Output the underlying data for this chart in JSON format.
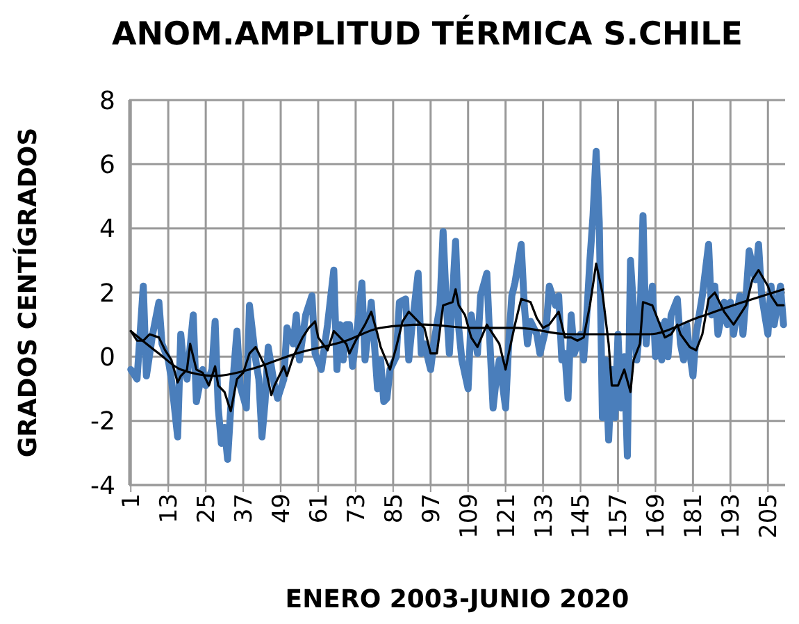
{
  "chart_data": {
    "type": "line",
    "title": "ANOM.AMPLITUD TÉRMICA S.CHILE",
    "xlabel": "ENERO 2003-JUNIO 2020",
    "ylabel": "GRADOS CENTÍGRADOS",
    "xlim": [
      0.5,
      210.5
    ],
    "xticks": [
      1,
      13,
      25,
      37,
      49,
      61,
      73,
      85,
      97,
      109,
      121,
      133,
      145,
      157,
      169,
      181,
      193,
      205
    ],
    "ylim": [
      -4,
      8
    ],
    "yticks": [
      -4,
      -2,
      0,
      2,
      4,
      6,
      8
    ],
    "grid": true,
    "marker": "none",
    "line_style": "solid",
    "series": [
      {
        "color": "#4a7ebb",
        "x": [
          1,
          3,
          5,
          6,
          8,
          10,
          11,
          13,
          14,
          16,
          17,
          18,
          19,
          21,
          22,
          24,
          25,
          27,
          28,
          29,
          30,
          31,
          32,
          33,
          35,
          36,
          38,
          39,
          41,
          42,
          43,
          44,
          45,
          47,
          48,
          50,
          51,
          53,
          54,
          55,
          57,
          59,
          60,
          62,
          64,
          66,
          67,
          68,
          69,
          70,
          71,
          72,
          74,
          75,
          76,
          78,
          79,
          80,
          81,
          82,
          83,
          84,
          86,
          87,
          89,
          90,
          91,
          93,
          94,
          95,
          97,
          98,
          100,
          101,
          102,
          103,
          105,
          106,
          107,
          109,
          110,
          112,
          113,
          115,
          116,
          117,
          118,
          119,
          121,
          122,
          123,
          124,
          126,
          127,
          128,
          129,
          131,
          132,
          134,
          135,
          137,
          138,
          139,
          140,
          141,
          142,
          143,
          145,
          146,
          147,
          148,
          149,
          150,
          151,
          152,
          153,
          154,
          155,
          156,
          157,
          158,
          159,
          160,
          161,
          163,
          164,
          165,
          166,
          168,
          169,
          170,
          171,
          172,
          173,
          174,
          176,
          177,
          178,
          179,
          180,
          181,
          182,
          184,
          185,
          186,
          187,
          188,
          189,
          191,
          192,
          193,
          194,
          196,
          197,
          198,
          199,
          201,
          202,
          203,
          205,
          206,
          207,
          209,
          210
        ],
        "values": [
          -0.4,
          -0.7,
          2.2,
          -0.6,
          0.7,
          1.7,
          0.4,
          -0.1,
          -0.7,
          -2.5,
          0.7,
          -0.3,
          -0.7,
          1.3,
          -1.4,
          -0.4,
          -0.9,
          -0.4,
          1.1,
          -1.6,
          -2.7,
          -2.2,
          -3.2,
          -1.6,
          0.8,
          -0.9,
          -1.6,
          1.6,
          -0.1,
          -0.7,
          -2.5,
          -1.4,
          0.3,
          -0.9,
          -1.3,
          -0.7,
          0.9,
          0.4,
          1.3,
          -0.1,
          1.3,
          1.9,
          0.1,
          -0.4,
          1.0,
          2.7,
          -0.4,
          1.0,
          -0.1,
          1.0,
          1.0,
          -0.3,
          1.3,
          2.3,
          -0.1,
          1.7,
          0.4,
          -1.0,
          -0.1,
          -1.4,
          -1.3,
          -0.4,
          0.0,
          1.7,
          1.8,
          -0.1,
          0.9,
          2.6,
          0.1,
          0.4,
          -0.4,
          0.4,
          1.6,
          3.9,
          1.7,
          0.1,
          3.6,
          0.9,
          -0.1,
          -1.0,
          1.3,
          0.1,
          1.9,
          2.6,
          0.4,
          -1.6,
          -0.7,
          -0.1,
          -1.6,
          0.4,
          1.9,
          2.3,
          3.5,
          1.6,
          0.4,
          1.1,
          0.7,
          0.1,
          0.9,
          2.2,
          1.6,
          1.9,
          -0.1,
          0.1,
          -1.3,
          1.3,
          0.1,
          0.7,
          -0.1,
          1.3,
          3.0,
          4.4,
          6.4,
          4.2,
          -1.9,
          -0.1,
          -2.6,
          -0.4,
          -1.9,
          0.7,
          -1.6,
          0.0,
          -3.1,
          3.0,
          -0.1,
          1.0,
          4.4,
          0.4,
          2.2,
          0.0,
          1.0,
          -0.1,
          1.1,
          0.0,
          1.3,
          1.8,
          0.4,
          -0.1,
          1.0,
          0.1,
          -0.6,
          0.7,
          1.9,
          2.7,
          3.5,
          1.3,
          2.2,
          0.7,
          1.7,
          1.0,
          1.7,
          0.7,
          1.9,
          0.7,
          1.9,
          3.3,
          2.4,
          3.5,
          1.9,
          0.7,
          2.2,
          1.0,
          2.2,
          1.0
        ]
      },
      {
        "color": "#000000",
        "x": [
          1,
          3,
          5,
          7,
          10,
          12,
          14,
          16,
          17,
          19,
          20,
          22,
          24,
          26,
          28,
          29,
          31,
          33,
          35,
          37,
          39,
          41,
          44,
          46,
          47,
          50,
          51,
          53,
          56,
          58,
          60,
          61,
          64,
          66,
          68,
          70,
          71,
          73,
          76,
          78,
          80,
          81,
          84,
          86,
          88,
          90,
          92,
          95,
          97,
          99,
          101,
          104,
          105,
          106,
          108,
          110,
          112,
          115,
          117,
          119,
          121,
          122,
          124,
          126,
          129,
          131,
          133,
          135,
          138,
          140,
          142,
          144,
          146,
          148,
          150,
          152,
          154,
          155,
          157,
          159,
          161,
          162,
          164,
          165,
          168,
          170,
          172,
          174,
          176,
          177,
          180,
          182,
          184,
          186,
          188,
          191,
          194,
          196,
          198,
          200,
          202,
          205,
          206,
          208,
          209,
          210
        ],
        "values": [
          0.8,
          0.5,
          0.5,
          0.7,
          0.6,
          0.2,
          -0.1,
          -0.8,
          -0.6,
          -0.4,
          0.4,
          -0.4,
          -0.5,
          -0.9,
          -0.3,
          -0.9,
          -1.1,
          -1.7,
          -0.7,
          -0.5,
          0.1,
          0.3,
          -0.3,
          -1.2,
          -0.9,
          -0.3,
          -0.6,
          0.0,
          0.6,
          0.9,
          1.1,
          0.6,
          0.2,
          0.8,
          0.6,
          0.4,
          0.1,
          0.5,
          1.0,
          1.4,
          0.7,
          0.3,
          -0.4,
          0.3,
          1.1,
          1.4,
          1.2,
          0.9,
          0.1,
          0.1,
          1.6,
          1.7,
          2.1,
          1.6,
          1.3,
          0.6,
          0.3,
          1.0,
          0.7,
          0.4,
          -0.4,
          0.1,
          1.0,
          1.8,
          1.7,
          1.2,
          0.9,
          1.0,
          1.4,
          0.6,
          0.6,
          0.5,
          0.6,
          1.6,
          2.9,
          2.0,
          0.4,
          -0.9,
          -0.9,
          -0.4,
          -1.1,
          -0.1,
          0.4,
          1.7,
          1.6,
          1.1,
          0.6,
          0.7,
          1.0,
          0.7,
          0.3,
          0.2,
          0.7,
          1.8,
          2.0,
          1.4,
          1.0,
          1.3,
          1.6,
          2.4,
          2.7,
          2.2,
          1.9,
          1.6,
          1.6,
          1.6
        ]
      },
      {
        "color": "#000000",
        "x": [
          1,
          10,
          17,
          28,
          39,
          54,
          70,
          81,
          95,
          110,
          125,
          141,
          152,
          167,
          182,
          197,
          210
        ],
        "values": [
          0.8,
          0.1,
          -0.4,
          -0.6,
          -0.4,
          0.1,
          0.5,
          0.9,
          1.0,
          0.9,
          0.9,
          0.7,
          0.7,
          0.7,
          1.2,
          1.7,
          2.1
        ]
      }
    ]
  }
}
